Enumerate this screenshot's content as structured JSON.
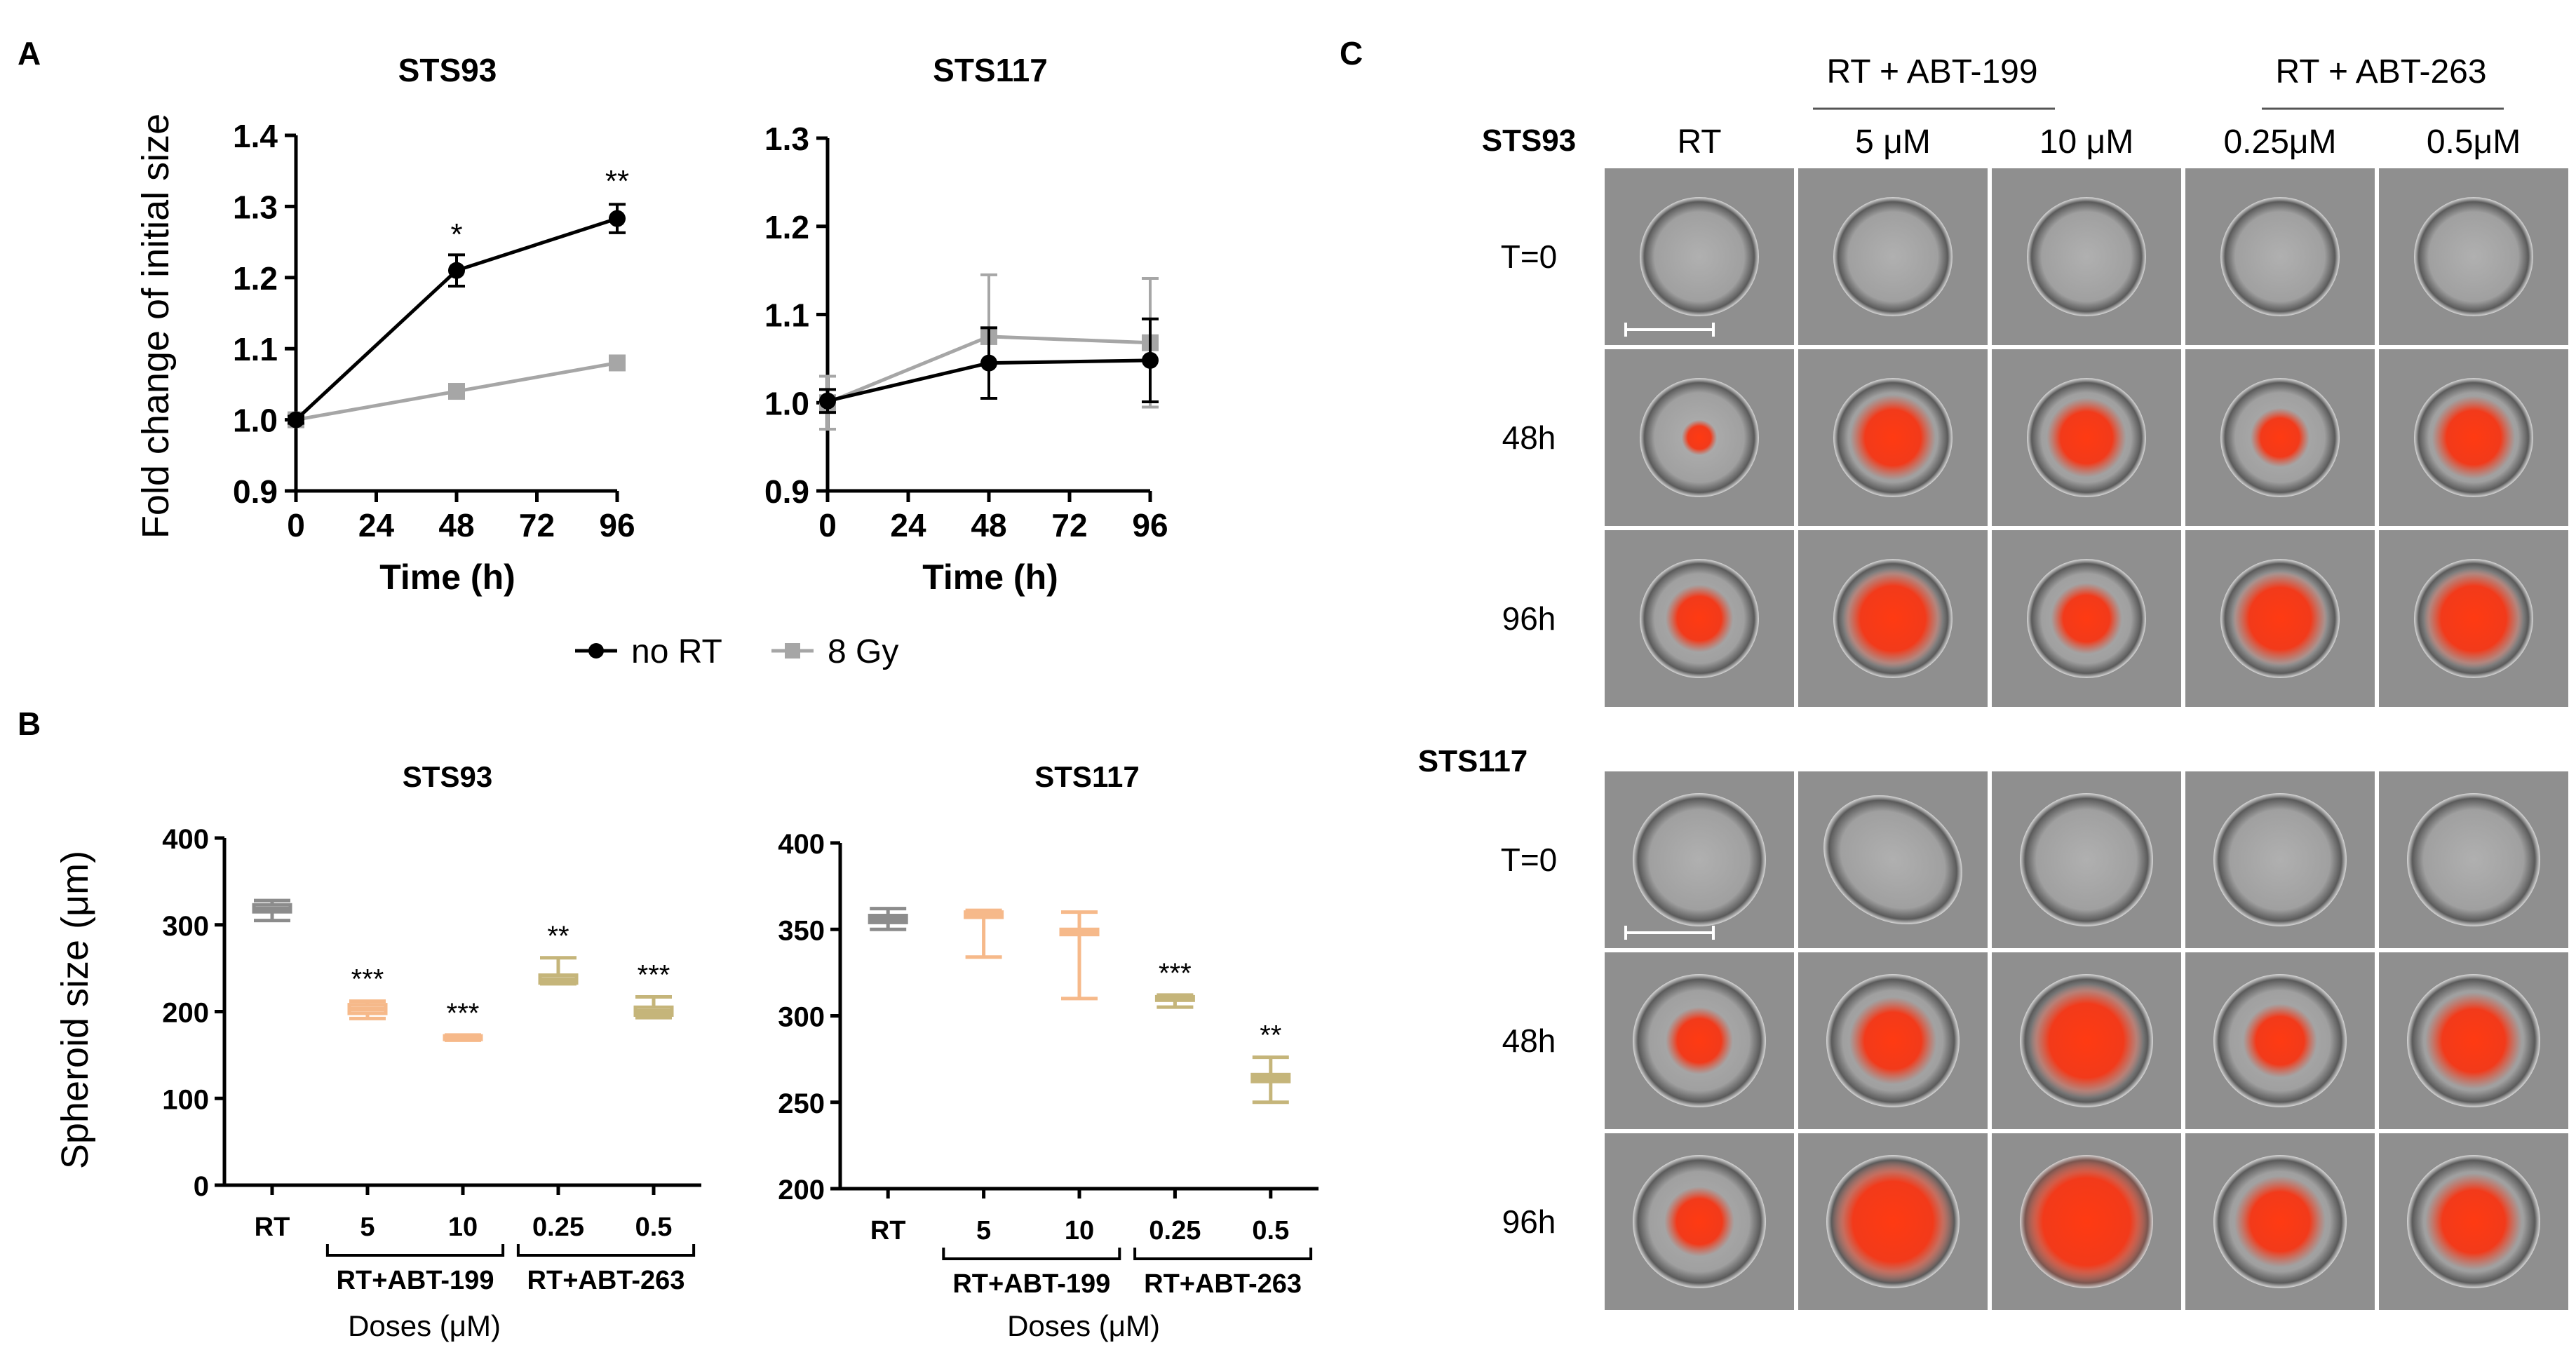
{
  "panel_letters": [
    "A",
    "B",
    "C"
  ],
  "chart_data": [
    {
      "id": "A1",
      "type": "line",
      "title": "STS93",
      "xlabel": "Time (h)",
      "ylabel": "Fold change of initial size",
      "xlim": [
        0,
        96
      ],
      "ylim": [
        0.9,
        1.4
      ],
      "xticks": [
        0,
        24,
        48,
        72,
        96
      ],
      "yticks": [
        0.9,
        1.0,
        1.1,
        1.2,
        1.3,
        1.4
      ],
      "series": [
        {
          "name": "no RT",
          "color": "#000000",
          "marker": "circle",
          "x": [
            0,
            48,
            96
          ],
          "y": [
            1.0,
            1.21,
            1.283
          ],
          "err": [
            0.005,
            0.022,
            0.02
          ]
        },
        {
          "name": "8 Gy",
          "color": "#a6a6a6",
          "marker": "square",
          "x": [
            0,
            48,
            96
          ],
          "y": [
            1.0,
            1.04,
            1.08
          ],
          "err": [
            0.003,
            0.004,
            0.005
          ]
        }
      ],
      "annotations": [
        {
          "x": 48,
          "y": 1.26,
          "text": "*"
        },
        {
          "x": 96,
          "y": 1.335,
          "text": "**"
        }
      ]
    },
    {
      "id": "A2",
      "type": "line",
      "title": "STS117",
      "xlabel": "Time (h)",
      "ylabel": "",
      "xlim": [
        0,
        96
      ],
      "ylim": [
        0.9,
        1.3
      ],
      "xticks": [
        0,
        24,
        48,
        72,
        96
      ],
      "yticks": [
        0.9,
        1.0,
        1.1,
        1.2,
        1.3
      ],
      "series": [
        {
          "name": "no RT",
          "color": "#000000",
          "marker": "circle",
          "x": [
            0,
            48,
            96
          ],
          "y": [
            1.002,
            1.045,
            1.048
          ],
          "err": [
            0.013,
            0.04,
            0.047
          ]
        },
        {
          "name": "8 Gy",
          "color": "#a6a6a6",
          "marker": "square",
          "x": [
            0,
            48,
            96
          ],
          "y": [
            1.0,
            1.075,
            1.068
          ],
          "err": [
            0.03,
            0.07,
            0.073
          ]
        }
      ],
      "annotations": []
    },
    {
      "id": "B1",
      "type": "bar",
      "title": "STS93",
      "xlabel": "Doses (μM)",
      "ylabel": "Spheroid size (μm)",
      "ylim": [
        0,
        400
      ],
      "yticks": [
        0,
        100,
        200,
        300,
        400
      ],
      "categories": [
        "RT",
        "5",
        "10",
        "0.25",
        "0.5"
      ],
      "groups": [
        {
          "label": "RT+ABT-199",
          "from": 1,
          "to": 2
        },
        {
          "label": "RT+ABT-263",
          "from": 3,
          "to": 4
        }
      ],
      "colors": [
        "#8c8c8c",
        "#f6b98a",
        "#f6b98a",
        "#c5b57a",
        "#c5b57a"
      ],
      "median": [
        318,
        203,
        170,
        237,
        200
      ],
      "q1": [
        315,
        198,
        168,
        233,
        196
      ],
      "q3": [
        323,
        208,
        172,
        242,
        205
      ],
      "min": [
        305,
        192,
        167,
        232,
        193
      ],
      "max": [
        328,
        212,
        173,
        262,
        217
      ],
      "labels": [
        "",
        "***",
        "***",
        "**",
        "***"
      ]
    },
    {
      "id": "B2",
      "type": "bar",
      "title": "STS117",
      "xlabel": "Doses (μM)",
      "ylabel": "",
      "ylim": [
        200,
        400
      ],
      "yticks": [
        200,
        250,
        300,
        350,
        400
      ],
      "categories": [
        "RT",
        "5",
        "10",
        "0.25",
        "0.5"
      ],
      "groups": [
        {
          "label": "RT+ABT-199",
          "from": 1,
          "to": 2
        },
        {
          "label": "RT+ABT-263",
          "from": 3,
          "to": 4
        }
      ],
      "colors": [
        "#8c8c8c",
        "#f6b98a",
        "#f6b98a",
        "#c5b57a",
        "#c5b57a"
      ],
      "median": [
        356,
        358,
        349,
        310,
        264
      ],
      "q1": [
        354,
        357,
        347,
        309,
        262
      ],
      "q3": [
        358,
        360,
        350,
        311,
        266
      ],
      "min": [
        350,
        334,
        310,
        305,
        250
      ],
      "max": [
        362,
        361,
        360,
        312,
        276
      ],
      "labels": [
        "",
        "",
        "",
        "***",
        "**"
      ]
    }
  ],
  "legend": [
    "no RT",
    "8 Gy"
  ],
  "panel_c": {
    "group_headers": [
      "RT + ABT-199",
      "RT + ABT-263"
    ],
    "column_headers": [
      "RT",
      "5 μM",
      "10 μM",
      "0.25μM",
      "0.5μM"
    ],
    "blocks": [
      {
        "title": "STS93",
        "rows": [
          "T=0",
          "48h",
          "96h"
        ],
        "red": [
          [
            0,
            0,
            0,
            0,
            0
          ],
          [
            0.18,
            0.6,
            0.55,
            0.38,
            0.58
          ],
          [
            0.45,
            0.72,
            0.48,
            0.68,
            0.72
          ]
        ]
      },
      {
        "title": "STS117",
        "rows": [
          "T=0",
          "48h",
          "96h"
        ],
        "red": [
          [
            0,
            0,
            0,
            0,
            0
          ],
          [
            0.4,
            0.55,
            0.75,
            0.45,
            0.62
          ],
          [
            0.42,
            0.82,
            0.9,
            0.58,
            0.62
          ]
        ]
      }
    ]
  },
  "colors": {
    "image_bg": "#8f8f8f",
    "cell_fill": "#a4a4a4",
    "stain": "#ff3c14",
    "grid_divider": "#ffffff"
  }
}
